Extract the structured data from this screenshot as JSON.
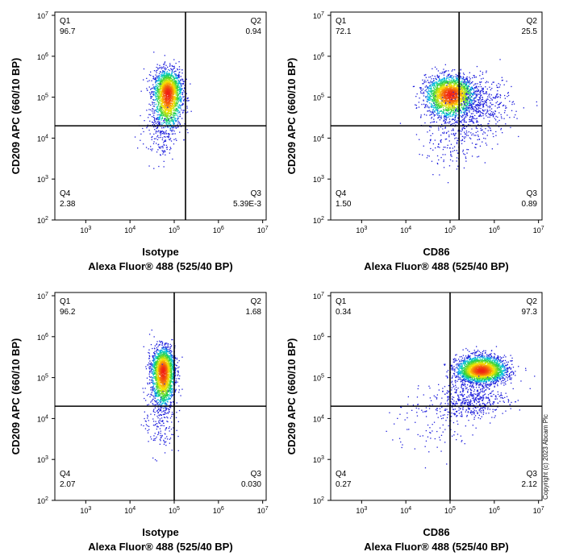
{
  "copyright": "Copyright (c) 2023 Abcam Plc",
  "chart_data": [
    {
      "type": "scatter",
      "xlabel": "Isotype",
      "xlabel2": "Alexa Fluor® 488  (525/40 BP)",
      "ylabel": "CD209 APC (660/10 BP)",
      "x_scale": "log",
      "y_scale": "log",
      "xlim": [
        200,
        12000000
      ],
      "ylim": [
        100,
        12000000
      ],
      "x_ticks": [
        3,
        4,
        5,
        6,
        7
      ],
      "y_ticks": [
        2,
        3,
        4,
        5,
        6,
        7
      ],
      "gate": {
        "x": 180000,
        "y": 20000
      },
      "quadrants": [
        {
          "name": "Q1",
          "value": "96.7"
        },
        {
          "name": "Q2",
          "value": "0.94"
        },
        {
          "name": "Q3",
          "value": "5.39E-3"
        },
        {
          "name": "Q4",
          "value": "2.38"
        }
      ],
      "populations": [
        {
          "cx": 70000,
          "cy": 130000,
          "sx": 0.16,
          "sy": 0.28,
          "n": 2200,
          "tail_dy": 0.6
        },
        {
          "cx": 40000,
          "cy": 12000,
          "sx": 0.22,
          "sy": 0.35,
          "n": 120,
          "tail_dy": 0
        }
      ]
    },
    {
      "type": "scatter",
      "xlabel": "CD86",
      "xlabel2": "Alexa Fluor® 488  (525/40 BP)",
      "ylabel": "CD209 APC (660/10 BP)",
      "x_scale": "log",
      "y_scale": "log",
      "xlim": [
        200,
        12000000
      ],
      "ylim": [
        100,
        12000000
      ],
      "x_ticks": [
        3,
        4,
        5,
        6,
        7
      ],
      "y_ticks": [
        2,
        3,
        4,
        5,
        6,
        7
      ],
      "gate": {
        "x": 160000,
        "y": 20000
      },
      "quadrants": [
        {
          "name": "Q1",
          "value": "72.1"
        },
        {
          "name": "Q2",
          "value": "25.5"
        },
        {
          "name": "Q3",
          "value": "0.89"
        },
        {
          "name": "Q4",
          "value": "1.50"
        }
      ],
      "populations": [
        {
          "cx": 100000,
          "cy": 120000,
          "sx": 0.28,
          "sy": 0.22,
          "n": 2300,
          "tail_dy": 0.3
        },
        {
          "cx": 500000,
          "cy": 60000,
          "sx": 0.35,
          "sy": 0.35,
          "n": 450,
          "tail_dy": 0
        },
        {
          "cx": 120000,
          "cy": 9000,
          "sx": 0.4,
          "sy": 0.35,
          "n": 200,
          "tail_dy": 0
        }
      ]
    },
    {
      "type": "scatter",
      "xlabel": "Isotype",
      "xlabel2": "Alexa Fluor® 488  (525/40 BP)",
      "ylabel": "CD209 APC (660/10 BP)",
      "x_scale": "log",
      "y_scale": "log",
      "xlim": [
        200,
        12000000
      ],
      "ylim": [
        100,
        12000000
      ],
      "x_ticks": [
        3,
        4,
        5,
        6,
        7
      ],
      "y_ticks": [
        2,
        3,
        4,
        5,
        6,
        7
      ],
      "gate": {
        "x": 100000,
        "y": 20000
      },
      "quadrants": [
        {
          "name": "Q1",
          "value": "96.2"
        },
        {
          "name": "Q2",
          "value": "1.68"
        },
        {
          "name": "Q3",
          "value": "0.030"
        },
        {
          "name": "Q4",
          "value": "2.07"
        }
      ],
      "populations": [
        {
          "cx": 55000,
          "cy": 150000,
          "sx": 0.13,
          "sy": 0.28,
          "n": 2200,
          "tail_dy": 0.6
        },
        {
          "cx": 45000,
          "cy": 8000,
          "sx": 0.18,
          "sy": 0.4,
          "n": 150,
          "tail_dy": 0
        }
      ]
    },
    {
      "type": "scatter",
      "xlabel": "CD86",
      "xlabel2": "Alexa Fluor® 488  (525/40 BP)",
      "ylabel": "CD209 APC (660/10 BP)",
      "x_scale": "log",
      "y_scale": "log",
      "xlim": [
        200,
        12000000
      ],
      "ylim": [
        100,
        12000000
      ],
      "x_ticks": [
        3,
        4,
        5,
        6,
        7
      ],
      "y_ticks": [
        2,
        3,
        4,
        5,
        6,
        7
      ],
      "gate": {
        "x": 100000,
        "y": 20000
      },
      "quadrants": [
        {
          "name": "Q1",
          "value": "0.34"
        },
        {
          "name": "Q2",
          "value": "97.3"
        },
        {
          "name": "Q3",
          "value": "2.12"
        },
        {
          "name": "Q4",
          "value": "0.27"
        }
      ],
      "populations": [
        {
          "cx": 500000,
          "cy": 150000,
          "sx": 0.28,
          "sy": 0.18,
          "n": 2600,
          "tail_dy": -0.2
        },
        {
          "cx": 300000,
          "cy": 30000,
          "sx": 0.4,
          "sy": 0.22,
          "n": 500,
          "tail_dy": 0
        },
        {
          "cx": 40000,
          "cy": 8000,
          "sx": 0.5,
          "sy": 0.4,
          "n": 120,
          "tail_dy": 0
        }
      ]
    }
  ]
}
